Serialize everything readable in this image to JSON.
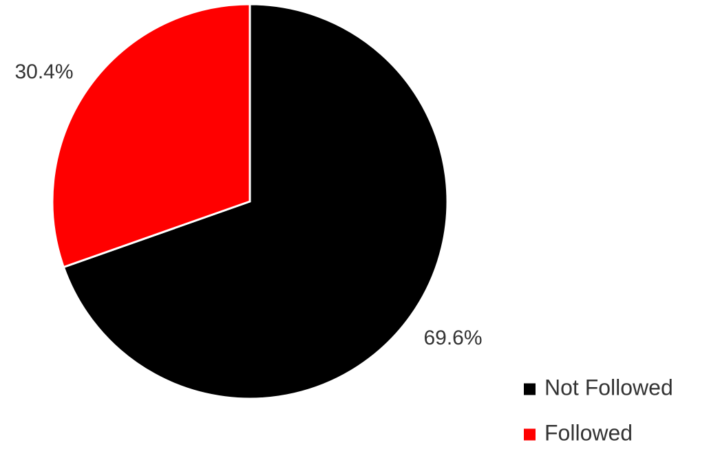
{
  "chart_data": {
    "type": "pie",
    "title": "",
    "series": [
      {
        "slices": [
          {
            "label": "Not Followed",
            "value": 69.6,
            "display": "69.6%",
            "color": "#000000"
          },
          {
            "label": "Followed",
            "value": 30.4,
            "display": "30.4%",
            "color": "#ff0000"
          }
        ]
      }
    ],
    "start_angle_deg": 0,
    "direction": "clockwise",
    "slice_border_color": "#ffffff",
    "legend": {
      "position": "bottom-right",
      "items": [
        {
          "label": "Not Followed",
          "color": "#000000"
        },
        {
          "label": "Followed",
          "color": "#ff0000"
        }
      ]
    }
  }
}
